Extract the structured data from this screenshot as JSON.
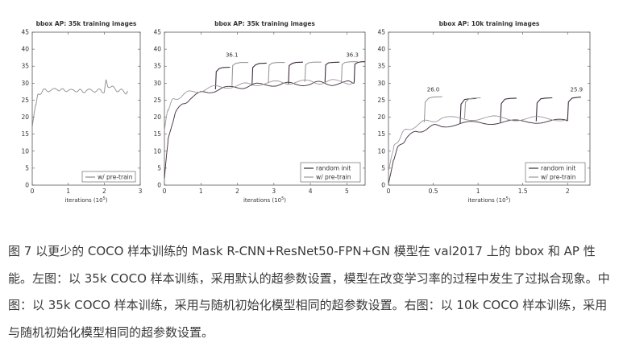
{
  "chart_data": [
    {
      "type": "line",
      "title": "bbox AP: 35k training images",
      "xlabel_text": "iterations (10",
      "xlabel_exp": "5",
      "xlabel_close": ")",
      "xlim": [
        0,
        3
      ],
      "ylim": [
        0,
        45
      ],
      "xticks": [
        "0",
        "1",
        "2",
        "3"
      ],
      "yticks": [
        "0",
        "5",
        "10",
        "15",
        "20",
        "25",
        "30",
        "35",
        "40",
        "45"
      ],
      "legend_position": "bottom-right",
      "series": [
        {
          "name": "w/ pre-train",
          "color": "#8c8c8c",
          "x": [
            0,
            0.05,
            0.1,
            0.15,
            0.2,
            0.3,
            0.4,
            0.5,
            0.6,
            0.7,
            0.8,
            0.9,
            1.0,
            1.1,
            1.2,
            1.3,
            1.4,
            1.5,
            1.6,
            1.7,
            1.8,
            1.9,
            2.0,
            2.05,
            2.1,
            2.2,
            2.3,
            2.4,
            2.5,
            2.6,
            2.65
          ],
          "y": [
            17,
            21,
            24,
            26,
            27,
            28,
            27.5,
            28.3,
            27.8,
            28.5,
            28,
            27.6,
            28.4,
            27.5,
            28.1,
            27.8,
            27.3,
            28.2,
            27.6,
            28.1,
            27.5,
            28,
            27.6,
            30.5,
            29.5,
            28.6,
            28.4,
            27.9,
            27.6,
            27.4,
            27.3
          ]
        }
      ]
    },
    {
      "type": "line",
      "title": "bbox AP: 35k training images",
      "xlabel_text": "iterations (10",
      "xlabel_exp": "5",
      "xlabel_close": ")",
      "xlim": [
        0,
        5.5
      ],
      "ylim": [
        0,
        45
      ],
      "xticks": [
        "0",
        "1",
        "2",
        "3",
        "4",
        "5"
      ],
      "yticks": [
        "0",
        "5",
        "10",
        "15",
        "20",
        "25",
        "30",
        "35",
        "40",
        "45"
      ],
      "legend_position": "bottom-right",
      "annotations": [
        {
          "text": "36.1",
          "x": 1.85,
          "y": 37.8
        },
        {
          "text": "36.3",
          "x": 5.15,
          "y": 37.8
        }
      ],
      "series": [
        {
          "name": "random init",
          "color": "#3d2b3d",
          "x": [
            0,
            0.05,
            0.1,
            0.2,
            0.3,
            0.5,
            0.7,
            1.0,
            1.3,
            1.6,
            2.0,
            2.3,
            2.6,
            3.0,
            3.3,
            3.6,
            4.0,
            4.3,
            4.6,
            5.0,
            5.2
          ],
          "y": [
            2,
            8,
            13,
            18,
            21,
            24,
            25.5,
            27,
            27.8,
            28.3,
            28.8,
            29.2,
            29.5,
            29.7,
            29.6,
            29.9,
            29.8,
            30,
            29.9,
            30.1,
            30
          ],
          "tuned_x": [
            [
              1.4,
              1.42,
              1.5,
              1.6,
              1.8
            ],
            [
              2.4,
              2.42,
              2.5,
              2.6,
              2.8
            ],
            [
              3.4,
              3.42,
              3.5,
              3.6,
              3.8
            ],
            [
              4.4,
              4.42,
              4.5,
              4.6,
              4.8
            ],
            [
              5.2,
              5.22,
              5.3,
              5.4,
              5.5
            ]
          ],
          "tuned_y": [
            [
              28.2,
              33.4,
              34.3,
              34.6,
              34.7
            ],
            [
              29.3,
              34.6,
              35.4,
              35.8,
              35.9
            ],
            [
              29.6,
              35.2,
              35.8,
              36.1,
              36.2
            ],
            [
              29.9,
              35.4,
              36,
              36.1,
              36.2
            ],
            [
              30,
              35.6,
              36.1,
              36.3,
              36.3
            ]
          ]
        },
        {
          "name": "w/ pre-train",
          "color": "#9a9a9a",
          "x": [
            0,
            0.05,
            0.1,
            0.2,
            0.3,
            0.5,
            0.7,
            1.0,
            1.3,
            1.6,
            2.0,
            2.3,
            2.6,
            3.0,
            3.3,
            3.6,
            4.0,
            4.3,
            4.6,
            5.0,
            5.2
          ],
          "y": [
            16,
            20,
            22.5,
            24.5,
            25.5,
            26.5,
            27.3,
            28,
            28.6,
            29,
            29.3,
            29.6,
            29.9,
            30.1,
            30.3,
            30.2,
            30.4,
            30.3,
            30.5,
            30.3,
            30.2
          ],
          "tuned_x": [
            [
              1.85,
              1.87,
              1.95,
              2.1,
              2.3
            ],
            [
              2.85,
              2.87,
              2.95,
              3.1,
              3.3
            ],
            [
              3.85,
              3.87,
              3.95,
              4.1,
              4.3
            ],
            [
              4.85,
              4.87,
              4.95,
              5.1,
              5.3
            ]
          ],
          "tuned_y": [
            [
              29.2,
              35.2,
              35.8,
              36.1,
              36.1
            ],
            [
              30,
              35.3,
              35.9,
              36.1,
              36.1
            ],
            [
              30.4,
              35.4,
              36,
              36.2,
              36.2
            ],
            [
              30.3,
              35.5,
              36.1,
              36.3,
              36.3
            ]
          ]
        }
      ]
    },
    {
      "type": "line",
      "title": "bbox AP: 10k training images",
      "xlabel_text": "iterations (10",
      "xlabel_exp": "5",
      "xlabel_close": ")",
      "xlim": [
        0,
        2.25
      ],
      "ylim": [
        0,
        45
      ],
      "xticks": [
        "0",
        "0.5",
        "1",
        "1.5",
        "2"
      ],
      "yticks": [
        "0",
        "5",
        "10",
        "15",
        "20",
        "25",
        "30",
        "35",
        "40",
        "45"
      ],
      "legend_position": "bottom-right",
      "annotations": [
        {
          "text": "26.0",
          "x": 0.5,
          "y": 27.6
        },
        {
          "text": "25.9",
          "x": 2.1,
          "y": 27.6
        }
      ],
      "series": [
        {
          "name": "random init",
          "color": "#3d2b3d",
          "x": [
            0,
            0.03,
            0.06,
            0.1,
            0.15,
            0.2,
            0.3,
            0.4,
            0.5,
            0.6,
            0.8,
            1.0,
            1.2,
            1.4,
            1.6,
            1.8,
            2.0
          ],
          "y": [
            0.5,
            4,
            8,
            10.5,
            12.5,
            13.8,
            15.5,
            16.5,
            17.2,
            17.6,
            18,
            18.3,
            18.5,
            18.6,
            18.8,
            18.7,
            18.9
          ],
          "tuned_x": [
            [
              0.8,
              0.81,
              0.85,
              0.9,
              0.98
            ],
            [
              1.25,
              1.26,
              1.3,
              1.35,
              1.43
            ],
            [
              1.65,
              1.66,
              1.7,
              1.75,
              1.83
            ],
            [
              2.0,
              2.01,
              2.05,
              2.1,
              2.15
            ]
          ],
          "tuned_y": [
            [
              18,
              23.8,
              25.2,
              25.4,
              25.5
            ],
            [
              18.5,
              24,
              25.3,
              25.5,
              25.6
            ],
            [
              18.8,
              24.2,
              25.4,
              25.6,
              25.7
            ],
            [
              18.9,
              24.5,
              25.6,
              25.8,
              25.9
            ]
          ]
        },
        {
          "name": "w/ pre-train",
          "color": "#9a9a9a",
          "x": [
            0,
            0.03,
            0.06,
            0.1,
            0.15,
            0.2,
            0.3,
            0.4,
            0.5,
            0.6,
            0.8,
            1.0,
            1.2,
            1.4,
            1.6,
            1.8,
            2.0
          ],
          "y": [
            4,
            8,
            11,
            13,
            15,
            16.3,
            17.5,
            18.5,
            19.2,
            19.5,
            19.7,
            19.6,
            19.8,
            19.5,
            19.7,
            19.4,
            19.6
          ],
          "tuned_x": [
            [
              0.4,
              0.41,
              0.45,
              0.5,
              0.6
            ],
            [
              0.85,
              0.86,
              0.9,
              0.95,
              1.03
            ]
          ],
          "tuned_y": [
            [
              18.5,
              24.5,
              25.6,
              25.9,
              26.0
            ],
            [
              19.6,
              24.5,
              25.4,
              25.6,
              25.7
            ]
          ]
        }
      ]
    }
  ],
  "caption": {
    "text": "图 7 以更少的 COCO 样本训练的 Mask R-CNN+ResNet50-FPN+GN 模型在 val2017 上的 bbox 和 AP 性能。左图：以 35k COCO 样本训练，采用默认的超参数设置，模型在改变学习率的过程中发生了过拟合现象。中图：以 35k COCO 样本训练，采用与随机初始化模型相同的超参数设置。右图：以 10k COCO 样本训练，采用与随机初始化模型相同的超参数设置。"
  }
}
